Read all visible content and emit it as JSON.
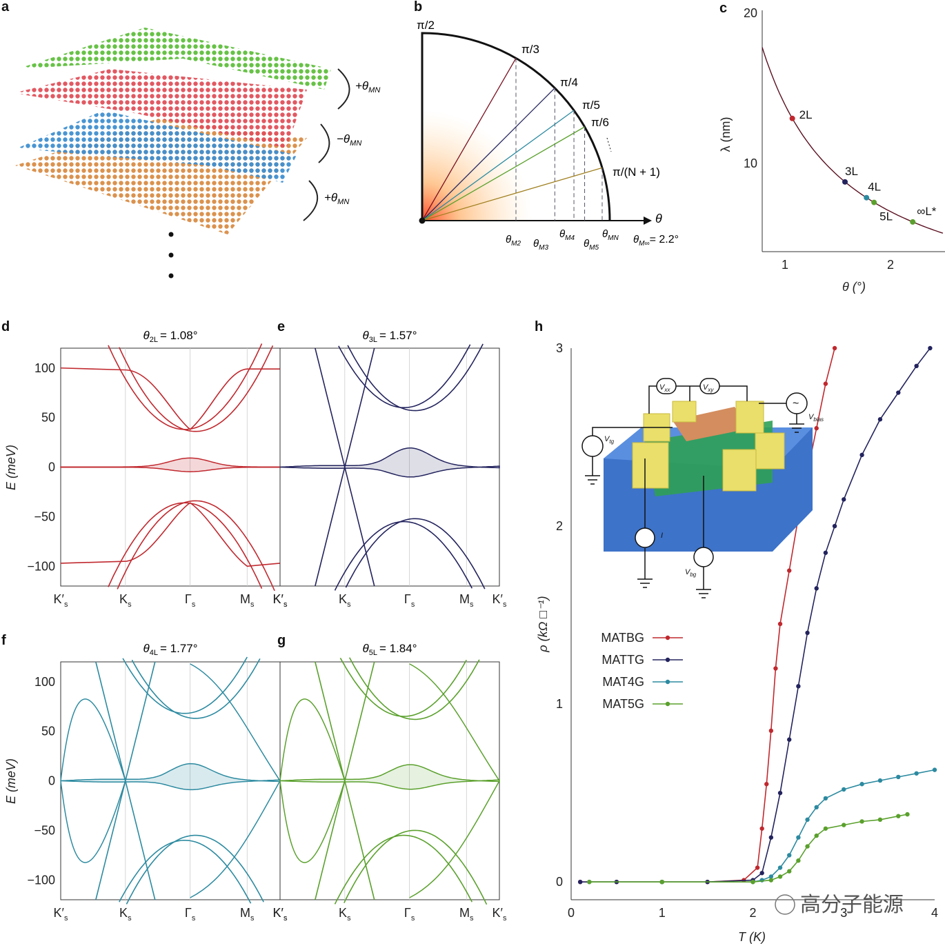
{
  "panel_labels": {
    "a": "a",
    "b": "b",
    "c": "c",
    "d": "d",
    "e": "e",
    "f": "f",
    "g": "g",
    "h": "h"
  },
  "colors": {
    "l1": "#5fbf3c",
    "l2": "#e0505a",
    "l3": "#3f8fd0",
    "l4": "#d98c45",
    "red": "#c0282e",
    "navy": "#23235e",
    "teal": "#2c8aa0",
    "green": "#5aa02c"
  },
  "panel_a": {
    "rot1": "+θ",
    "rot1_sub": "MN",
    "rot2": "−θ",
    "rot2_sub": "MN",
    "rot3": "+θ",
    "rot3_sub": "MN"
  },
  "panel_b": {
    "angle_labels": [
      "π/2",
      "π/3",
      "π/4",
      "π/5",
      "π/6",
      "π/(N + 1)"
    ],
    "theta_axis": "θ",
    "magic_labels": [
      {
        "t": "θ",
        "s": "M2"
      },
      {
        "t": "θ",
        "s": "M3"
      },
      {
        "t": "θ",
        "s": "M4"
      },
      {
        "t": "θ",
        "s": "M5"
      },
      {
        "t": "θ",
        "s": "MN"
      }
    ],
    "minf_t": "θ",
    "minf_s": "M∞",
    "minf_val": "= 2.2°"
  },
  "chart_data": [
    {
      "id": "c",
      "type": "line",
      "xlabel": "θ (°)",
      "ylabel": "λ (nm)",
      "xlim": [
        0.8,
        2.5
      ],
      "ylim": [
        4.5,
        20
      ],
      "xticks": [
        "1",
        "2"
      ],
      "yticks": [
        "10",
        "20"
      ],
      "points": [
        {
          "label": "2L",
          "x": 1.08,
          "y": 13.0,
          "color": "#c0282e"
        },
        {
          "label": "3L",
          "x": 1.57,
          "y": 9.0,
          "color": "#23235e"
        },
        {
          "label": "4L",
          "x": 1.77,
          "y": 8.0,
          "color": "#2c8aa0"
        },
        {
          "label": "5L",
          "x": 1.84,
          "y": 7.6,
          "color": "#5aa02c"
        },
        {
          "label": "∞L*",
          "x": 2.2,
          "y": 6.4,
          "color": "#5aa02c"
        }
      ]
    },
    {
      "id": "d",
      "type": "line",
      "title_t": "θ",
      "title_s": "2L",
      "title_v": "= 1.08°",
      "ylabel": "E (meV)",
      "ylim": [
        -120,
        120
      ],
      "yticks": [
        "100",
        "50",
        "0",
        "−50",
        "−100"
      ],
      "xticks": [
        "K′",
        "K",
        "Γ",
        "M",
        "K′"
      ],
      "xsub": "s"
    },
    {
      "id": "e",
      "type": "line",
      "title_t": "θ",
      "title_s": "3L",
      "title_v": "= 1.57°",
      "ylim": [
        -120,
        120
      ],
      "xticks": [
        "K′",
        "K",
        "Γ",
        "M",
        "K′"
      ],
      "xsub": "s"
    },
    {
      "id": "f",
      "type": "line",
      "title_t": "θ",
      "title_s": "4L",
      "title_v": "= 1.77°",
      "ylabel": "E (meV)",
      "ylim": [
        -120,
        120
      ],
      "yticks": [
        "100",
        "50",
        "0",
        "−50",
        "−100"
      ],
      "xticks": [
        "K′",
        "K",
        "Γ",
        "M",
        "K′"
      ],
      "xsub": "s"
    },
    {
      "id": "g",
      "type": "line",
      "title_t": "θ",
      "title_s": "5L",
      "title_v": "= 1.84°",
      "ylim": [
        -120,
        120
      ],
      "xticks": [
        "K′",
        "K",
        "Γ",
        "M",
        "K′"
      ],
      "xsub": "s"
    },
    {
      "id": "h",
      "type": "line",
      "xlabel": "T (K)",
      "ylabel": "ρ (kΩ □⁻¹)",
      "xlim": [
        0,
        4
      ],
      "ylim": [
        -0.1,
        3.0
      ],
      "xticks": [
        "0",
        "1",
        "2",
        "3",
        "4"
      ],
      "yticks": [
        "0",
        "1",
        "2",
        "3"
      ],
      "legend_position": "middle-left",
      "series": [
        {
          "name": "MATBG",
          "color": "#c0282e",
          "x": [
            0.1,
            0.5,
            1.0,
            1.5,
            1.9,
            2.05,
            2.1,
            2.15,
            2.2,
            2.25,
            2.3,
            2.4,
            2.5,
            2.6,
            2.7,
            2.8,
            2.9
          ],
          "y": [
            0,
            0,
            0,
            0,
            0.01,
            0.08,
            0.3,
            0.55,
            0.85,
            1.2,
            1.45,
            1.75,
            2.05,
            2.3,
            2.55,
            2.8,
            3.0
          ]
        },
        {
          "name": "MATTG",
          "color": "#23235e",
          "x": [
            0.1,
            0.5,
            1.0,
            1.5,
            2.0,
            2.1,
            2.2,
            2.3,
            2.4,
            2.5,
            2.6,
            2.7,
            2.8,
            2.9,
            3.0,
            3.2,
            3.4,
            3.6,
            3.8,
            3.95
          ],
          "y": [
            0,
            0,
            0,
            0,
            0.01,
            0.05,
            0.25,
            0.5,
            0.8,
            1.1,
            1.4,
            1.65,
            1.85,
            2.0,
            2.15,
            2.4,
            2.6,
            2.75,
            2.9,
            3.0
          ]
        },
        {
          "name": "MAT4G",
          "color": "#2c8aa0",
          "x": [
            0.2,
            1.0,
            2.0,
            2.1,
            2.2,
            2.3,
            2.4,
            2.5,
            2.6,
            2.7,
            2.8,
            3.0,
            3.2,
            3.4,
            3.6,
            3.8,
            4.0
          ],
          "y": [
            0,
            0,
            0,
            0.01,
            0.03,
            0.08,
            0.15,
            0.25,
            0.35,
            0.42,
            0.47,
            0.52,
            0.55,
            0.57,
            0.59,
            0.61,
            0.63
          ]
        },
        {
          "name": "MAT5G",
          "color": "#5aa02c",
          "x": [
            0.2,
            1.0,
            2.0,
            2.2,
            2.3,
            2.4,
            2.5,
            2.6,
            2.7,
            2.8,
            3.0,
            3.2,
            3.4,
            3.6,
            3.7
          ],
          "y": [
            0,
            0,
            0,
            0.01,
            0.03,
            0.06,
            0.12,
            0.2,
            0.26,
            0.3,
            0.32,
            0.34,
            0.35,
            0.37,
            0.38
          ]
        }
      ]
    }
  ],
  "inset_h": {
    "vxx": "V",
    "vxx_s": "xx",
    "vxy": "V",
    "vxy_s": "xy",
    "vtg": "V",
    "vtg_s": "tg",
    "vbias": "V",
    "vbias_s": "bias",
    "vbg": "V",
    "vbg_s": "bg",
    "i": "I",
    "ac": "~"
  },
  "watermark": "高分子能源"
}
